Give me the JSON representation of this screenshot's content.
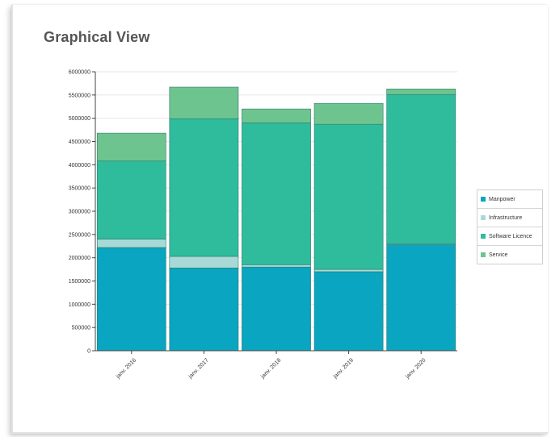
{
  "page": {
    "title": "Graphical View"
  },
  "chart_data": {
    "type": "bar",
    "stacked": true,
    "categories": [
      "janv. 2016",
      "janv. 2017",
      "janv. 2018",
      "janv. 2019",
      "janv. 2020"
    ],
    "series": [
      {
        "name": "Manpower",
        "color": "#0aa5c0",
        "values": [
          2220000,
          1780000,
          1800000,
          1700000,
          2280000
        ]
      },
      {
        "name": "Infrastructure",
        "color": "#a7dad6",
        "values": [
          180000,
          250000,
          50000,
          50000,
          20000
        ]
      },
      {
        "name": "Software Licence",
        "color": "#2ebc9c",
        "values": [
          1680000,
          2960000,
          3050000,
          3120000,
          3210000
        ]
      },
      {
        "name": "Service",
        "color": "#6ec48e",
        "values": [
          600000,
          680000,
          300000,
          450000,
          120000
        ]
      }
    ],
    "yticks": [
      "0",
      "500000",
      "1000000",
      "1500000",
      "2000000",
      "2500000",
      "3000000",
      "3500000",
      "4000000",
      "4500000",
      "5000000",
      "5500000",
      "6000000"
    ],
    "ylim": [
      0,
      6000000
    ],
    "grid": true,
    "legend_position": "right"
  }
}
